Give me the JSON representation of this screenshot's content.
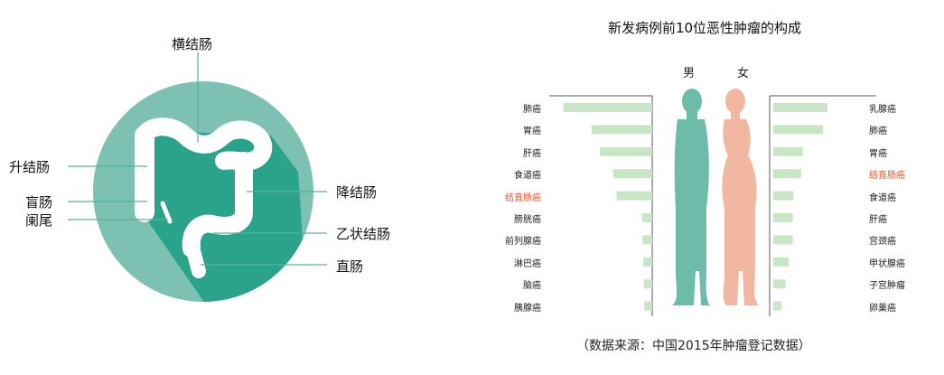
{
  "colon_diagram": {
    "labels": {
      "transverse": "横结肠",
      "ascending": "升结肠",
      "cecum": "盲肠",
      "appendix": "阑尾",
      "descending": "降结肠",
      "sigmoid": "乙状结肠",
      "rectum": "直肠"
    },
    "colors": {
      "circle_light": "#7dc1b3",
      "circle_dark": "#2aa38a",
      "organ": "#ffffff",
      "line": "#5ab0a0"
    }
  },
  "chart_data": {
    "type": "bar",
    "title": "新发病例前10位恶性肿瘤的构成",
    "series": [
      {
        "name": "男",
        "categories": [
          "肺癌",
          "胃癌",
          "肝癌",
          "食道癌",
          "结直肠癌",
          "膀胱癌",
          "前列腺癌",
          "淋巴癌",
          "脑癌",
          "胰腺癌"
        ],
        "values": [
          24.6,
          16.8,
          14.5,
          10.8,
          9.9,
          2.8,
          2.7,
          2.5,
          2.3,
          2.2
        ]
      },
      {
        "name": "女",
        "categories": [
          "乳腺癌",
          "肺癌",
          "胃癌",
          "结直肠癌",
          "食道癌",
          "肝癌",
          "宫颈癌",
          "甲状腺癌",
          "子宫肿瘤",
          "卵巢癌"
        ],
        "values": [
          15.0,
          13.8,
          8.2,
          7.7,
          5.6,
          5.4,
          5.4,
          4.3,
          3.4,
          2.3
        ]
      }
    ],
    "highlight_category": "结直肠癌",
    "colors": {
      "bar": "#c8e6c6",
      "highlight_text": "#e8552a",
      "male_figure": "#6dbba9",
      "female_figure": "#f2b7a0",
      "axis": "#555555"
    },
    "note": "（数据来源：中国2015年肿瘤登记数据）"
  }
}
